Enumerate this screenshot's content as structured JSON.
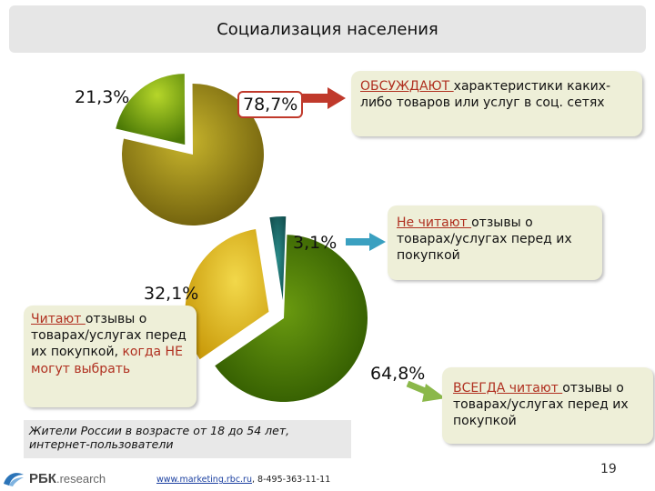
{
  "title": "Социализация населения",
  "chart_data": [
    {
      "type": "pie",
      "slices": [
        {
          "value": 21.3,
          "label": "21,3%"
        },
        {
          "value": 78.7,
          "label": "78,7%"
        }
      ],
      "annotation": {
        "highlight": "ОБСУЖДАЮТ ",
        "text": "характеристики каких-либо товаров или услуг в соц. сетях"
      }
    },
    {
      "type": "pie",
      "slices": [
        {
          "value": 3.1,
          "label": "3,1%"
        },
        {
          "value": 64.8,
          "label": "64,8%"
        },
        {
          "value": 32.1,
          "label": "32,1%"
        }
      ],
      "annotations": [
        {
          "highlight": "Не читают ",
          "text": "отзывы о товарах/услугах перед их покупкой"
        },
        {
          "highlight": "ВСЕГДА читают ",
          "text": "отзывы о товарах/услугах перед их покупкой"
        },
        {
          "highlight": "Читают ",
          "text": "отзывы о товарах/услугах перед их покупкой, ",
          "highlight2": "когда НЕ могут выбрать"
        }
      ]
    }
  ],
  "footer": {
    "population": "Жители России в возрасте от 18 до 54 лет, интернет-пользователи",
    "logo": "РБК",
    "logo_suffix": ".research",
    "website": "www.marketing.rbc.ru",
    "phone": ", 8-495-363-11-11",
    "page": "19"
  },
  "colors": {
    "olive_dark": "#7a6a10",
    "olive_light": "#c2b12a",
    "green_dark": "#4a7a00",
    "green_light": "#a9cc1a",
    "teal": "#1a6b6b",
    "yellow": "#e6c21c",
    "note_bg": "#eeefd8",
    "accent_red": "#b03020"
  }
}
